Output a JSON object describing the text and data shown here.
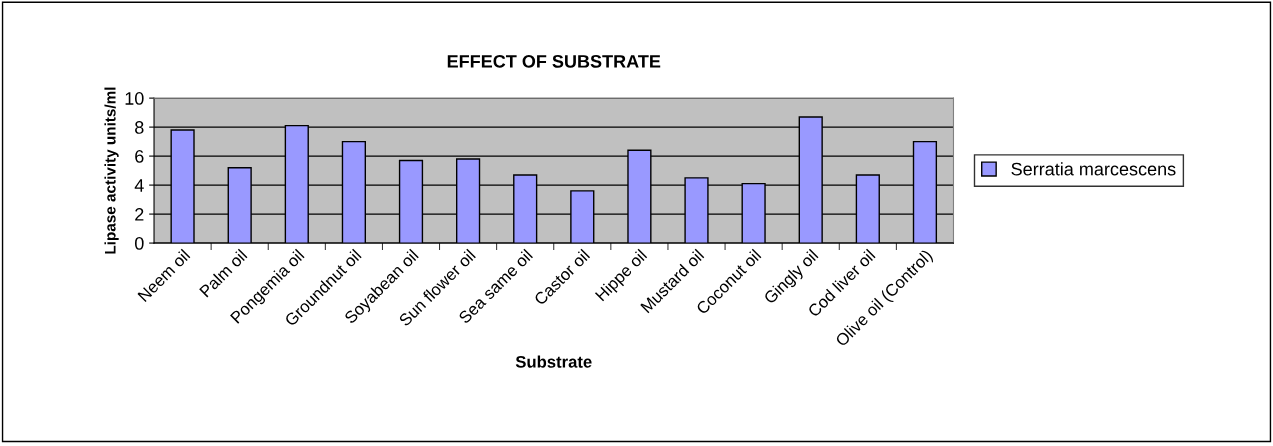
{
  "chart_data": {
    "type": "bar",
    "title": "EFFECT OF SUBSTRATE",
    "xlabel": "Substrate",
    "ylabel": "Lipase activity units/ml",
    "categories": [
      "Neem oil",
      "Palm oil",
      "Pongemia oil",
      "Groundnut oil",
      "Soyabean oil",
      "Sun flower oil",
      "Sea same oil",
      "Castor oil",
      "Hippe oil",
      "Mustard oil",
      "Coconut oil",
      "Gingly oil",
      "Cod liver oil",
      "Olive oil (Control)"
    ],
    "series": [
      {
        "name": "Serratia marcescens",
        "color": "#9999ff",
        "values": [
          7.8,
          5.2,
          8.1,
          7.0,
          5.7,
          5.8,
          4.7,
          3.6,
          6.4,
          4.5,
          4.1,
          8.7,
          4.7,
          7.0
        ]
      }
    ],
    "ylim": [
      0,
      10
    ],
    "yticks": [
      0,
      2,
      4,
      6,
      8,
      10
    ],
    "grid": "y",
    "legend": "right"
  }
}
